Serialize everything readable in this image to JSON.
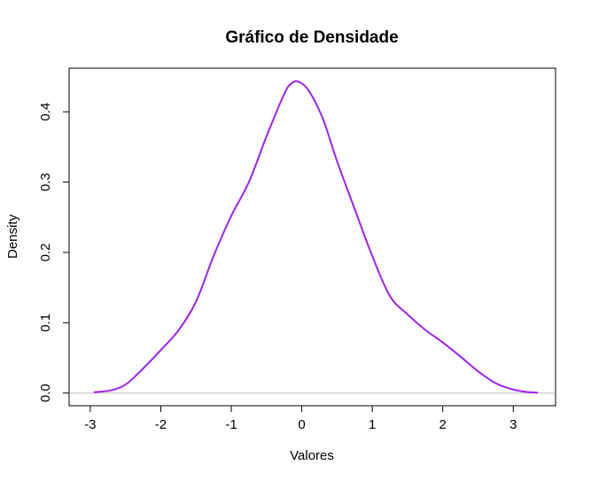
{
  "chart_data": {
    "type": "line",
    "title": "Gráfico de Densidade",
    "xlabel": "Valores",
    "ylabel": "Density",
    "xlim": [
      -3.3,
      3.6
    ],
    "ylim": [
      -0.018,
      0.462
    ],
    "x_ticks": [
      -3,
      -2,
      -1,
      0,
      1,
      2,
      3
    ],
    "y_ticks": [
      0.0,
      0.1,
      0.2,
      0.3,
      0.4
    ],
    "y_tick_labels": [
      "0.0",
      "0.1",
      "0.2",
      "0.3",
      "0.4"
    ],
    "grid": false,
    "line_color": "#a020f0",
    "baseline_color": "#bebebe",
    "series": [
      {
        "x": [
          -2.95,
          -2.7,
          -2.5,
          -2.3,
          -2.0,
          -1.75,
          -1.5,
          -1.25,
          -1.0,
          -0.75,
          -0.5,
          -0.25,
          -0.15,
          -0.05,
          0.1,
          0.3,
          0.5,
          0.75,
          1.0,
          1.25,
          1.5,
          1.75,
          2.0,
          2.25,
          2.5,
          2.75,
          3.0,
          3.2,
          3.35
        ],
        "y": [
          0.001,
          0.004,
          0.012,
          0.03,
          0.061,
          0.089,
          0.13,
          0.195,
          0.252,
          0.3,
          0.365,
          0.425,
          0.44,
          0.443,
          0.43,
          0.39,
          0.33,
          0.262,
          0.195,
          0.138,
          0.112,
          0.09,
          0.072,
          0.052,
          0.031,
          0.014,
          0.005,
          0.0015,
          0.0005
        ]
      }
    ]
  }
}
